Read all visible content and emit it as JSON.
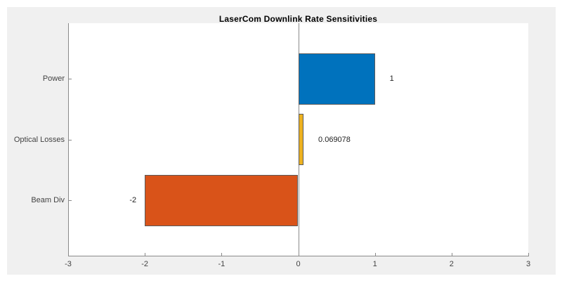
{
  "window": {
    "background_color": "#ffffff"
  },
  "figure": {
    "background_color": "#f0f0f0",
    "plot_background_color": "#ffffff"
  },
  "chart_data": {
    "type": "bar",
    "orientation": "horizontal",
    "title": "LaserCom Downlink Rate Sensitivities",
    "categories": [
      "Power",
      "Optical Losses",
      "Beam Div"
    ],
    "values": [
      1,
      0.069078,
      -2
    ],
    "value_labels": [
      "1",
      "0.069078",
      "-2"
    ],
    "bar_colors": [
      "#0072bd",
      "#edb120",
      "#d95319"
    ],
    "bar_edge_color": "#5a5a5a",
    "xlim": [
      -3,
      3
    ],
    "x_ticks": [
      -3,
      -2,
      -1,
      0,
      1,
      2,
      3
    ],
    "x_tick_labels": [
      "-3",
      "-2",
      "-1",
      "0",
      "1",
      "2",
      "3"
    ],
    "grid": false,
    "zero_line": true,
    "legend": null,
    "axis_color": "#8a8a8a",
    "tick_label_color": "#424242",
    "value_label_color": "#1f1f1f"
  }
}
